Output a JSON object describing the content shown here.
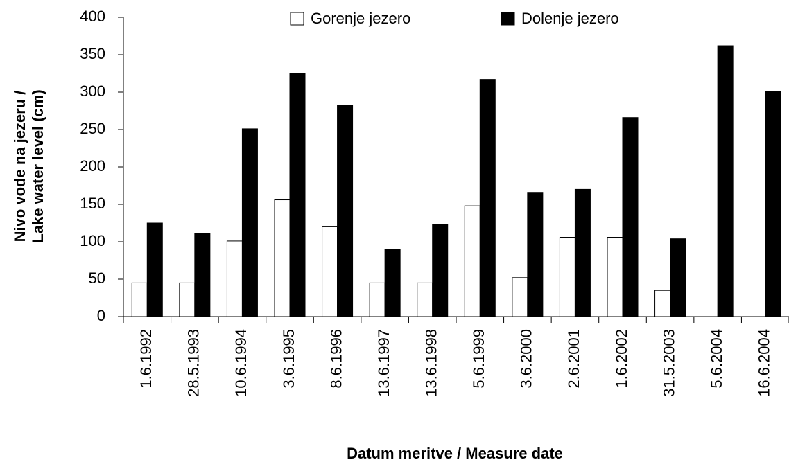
{
  "chart_data": {
    "type": "bar",
    "x_label": "Datum meritve / Measure date",
    "y_label": [
      "Nivo vode na jezeru /",
      "Lake water level (cm)"
    ],
    "categories": [
      "1.6.1992",
      "28.5.1993",
      "10.6.1994",
      "3.6.1995",
      "8.6.1996",
      "13.6.1997",
      "13.6.1998",
      "5.6.1999",
      "3.6.2000",
      "2.6.2001",
      "1.6.2002",
      "31.5.2003",
      "5.6.2004",
      "16.6.2004"
    ],
    "series": [
      {
        "name": "Gorenje jezero",
        "color": "#ffffff",
        "values": [
          45,
          45,
          101,
          156,
          120,
          45,
          45,
          148,
          52,
          106,
          106,
          35,
          null,
          null
        ]
      },
      {
        "name": "Dolenje jezero",
        "color": "#000000",
        "values": [
          125,
          111,
          251,
          325,
          282,
          90,
          123,
          317,
          166,
          170,
          266,
          104,
          362,
          301
        ]
      }
    ],
    "ylim": [
      0,
      400
    ],
    "yticks": [
      0,
      50,
      100,
      150,
      200,
      250,
      300,
      350,
      400
    ],
    "grid": false,
    "legend": "top"
  }
}
